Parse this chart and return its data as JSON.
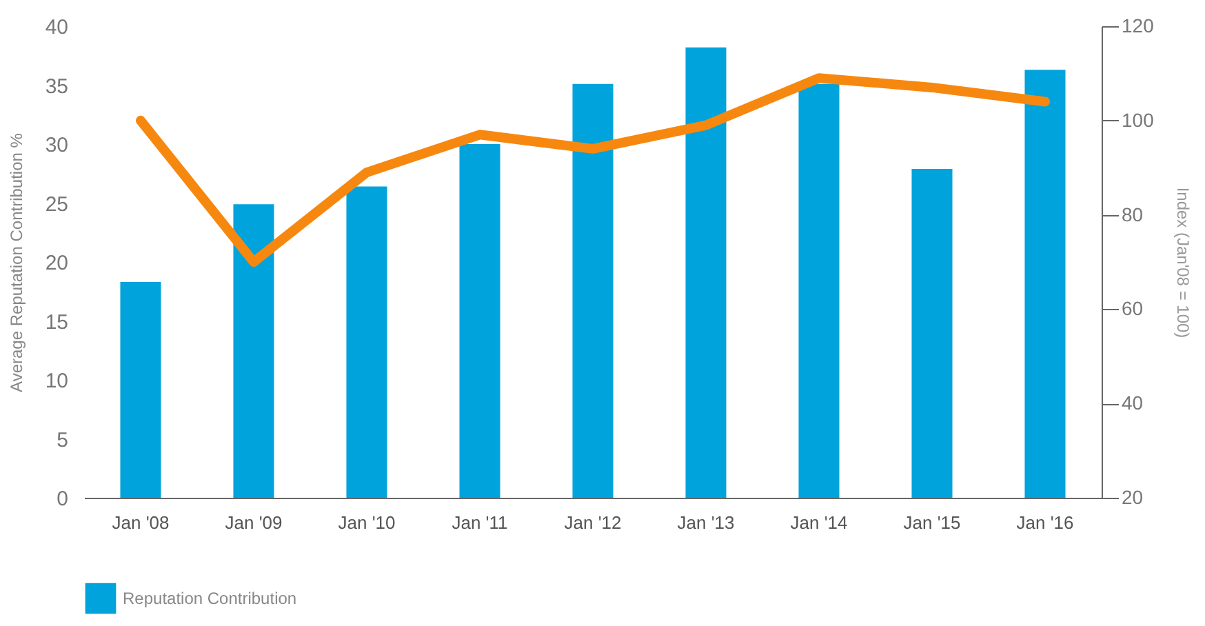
{
  "chart_data": {
    "type": "bar",
    "categories": [
      "Jan '08",
      "Jan '09",
      "Jan '10",
      "Jan '11",
      "Jan '12",
      "Jan '13",
      "Jan '14",
      "Jan '15",
      "Jan '16"
    ],
    "ylabel": "Average Reputation Contribution %",
    "y2label": "Index (Jan'08 = 100)",
    "ylim": [
      0,
      40
    ],
    "yticks": [
      0,
      5,
      10,
      15,
      20,
      25,
      30,
      35,
      40
    ],
    "y2lim": [
      20,
      120
    ],
    "y2ticks": [
      20,
      40,
      60,
      80,
      100,
      120
    ],
    "series": [
      {
        "name": "Reputation Contribution",
        "color": "#00a3dc",
        "values": [
          18.3,
          24.9,
          26.4,
          30,
          35.1,
          38.2,
          35.1,
          27.9,
          36.3
        ]
      },
      {
        "type": "line",
        "axis": "y2",
        "color": "#f7880f",
        "values": [
          100,
          70,
          89,
          97,
          94,
          99,
          109,
          107,
          104
        ]
      }
    ],
    "grid": false,
    "legend": "bottom left"
  }
}
